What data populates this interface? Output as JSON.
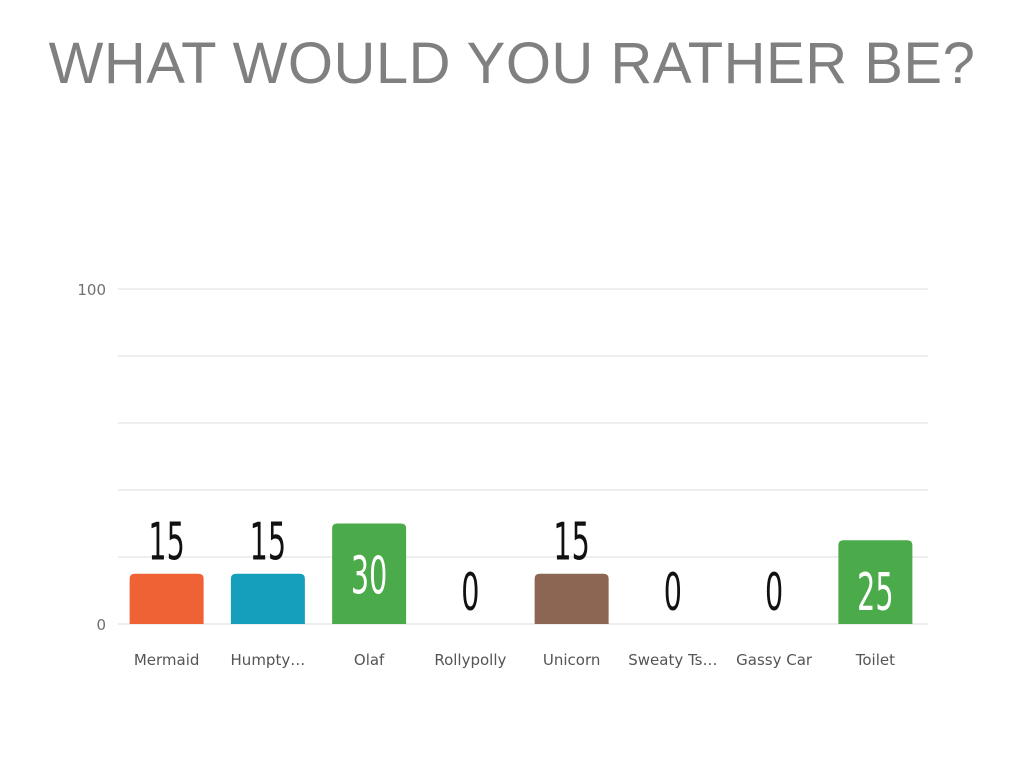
{
  "title": "WHAT WOULD YOU RATHER BE?",
  "chart_data": {
    "type": "bar",
    "categories": [
      "Mermaid",
      "Humpty…",
      "Olaf",
      "Rollypolly",
      "Unicorn",
      "Sweaty Ts…",
      "Gassy Car",
      "Toilet"
    ],
    "values": [
      15,
      15,
      30,
      0,
      15,
      0,
      0,
      25
    ],
    "colors": [
      "#EF6236",
      "#159FBD",
      "#4BAA4A",
      "#999999",
      "#8C6652",
      "#999999",
      "#999999",
      "#4BAA4A"
    ],
    "ylim": [
      0,
      100
    ],
    "yticks": [
      0,
      100
    ],
    "gridlines": 5,
    "grid": true,
    "xlabel": "",
    "ylabel": ""
  }
}
